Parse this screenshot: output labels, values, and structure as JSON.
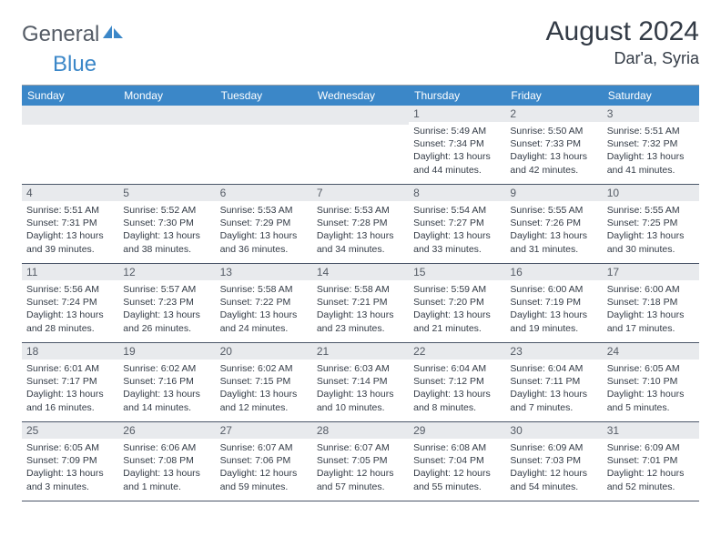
{
  "brand": {
    "part1": "General",
    "part2": "Blue"
  },
  "title": "August 2024",
  "location": "Dar'a, Syria",
  "colors": {
    "header_bg": "#3b87c8",
    "header_text": "#ffffff",
    "daynum_bg": "#e8eaed",
    "border": "#4a5568",
    "text": "#333b46",
    "logo_gray": "#555c66",
    "logo_blue": "#3b87c8"
  },
  "day_names": [
    "Sunday",
    "Monday",
    "Tuesday",
    "Wednesday",
    "Thursday",
    "Friday",
    "Saturday"
  ],
  "weeks": [
    [
      null,
      null,
      null,
      null,
      {
        "n": "1",
        "sr": "5:49 AM",
        "ss": "7:34 PM",
        "dl": "13 hours and 44 minutes."
      },
      {
        "n": "2",
        "sr": "5:50 AM",
        "ss": "7:33 PM",
        "dl": "13 hours and 42 minutes."
      },
      {
        "n": "3",
        "sr": "5:51 AM",
        "ss": "7:32 PM",
        "dl": "13 hours and 41 minutes."
      }
    ],
    [
      {
        "n": "4",
        "sr": "5:51 AM",
        "ss": "7:31 PM",
        "dl": "13 hours and 39 minutes."
      },
      {
        "n": "5",
        "sr": "5:52 AM",
        "ss": "7:30 PM",
        "dl": "13 hours and 38 minutes."
      },
      {
        "n": "6",
        "sr": "5:53 AM",
        "ss": "7:29 PM",
        "dl": "13 hours and 36 minutes."
      },
      {
        "n": "7",
        "sr": "5:53 AM",
        "ss": "7:28 PM",
        "dl": "13 hours and 34 minutes."
      },
      {
        "n": "8",
        "sr": "5:54 AM",
        "ss": "7:27 PM",
        "dl": "13 hours and 33 minutes."
      },
      {
        "n": "9",
        "sr": "5:55 AM",
        "ss": "7:26 PM",
        "dl": "13 hours and 31 minutes."
      },
      {
        "n": "10",
        "sr": "5:55 AM",
        "ss": "7:25 PM",
        "dl": "13 hours and 30 minutes."
      }
    ],
    [
      {
        "n": "11",
        "sr": "5:56 AM",
        "ss": "7:24 PM",
        "dl": "13 hours and 28 minutes."
      },
      {
        "n": "12",
        "sr": "5:57 AM",
        "ss": "7:23 PM",
        "dl": "13 hours and 26 minutes."
      },
      {
        "n": "13",
        "sr": "5:58 AM",
        "ss": "7:22 PM",
        "dl": "13 hours and 24 minutes."
      },
      {
        "n": "14",
        "sr": "5:58 AM",
        "ss": "7:21 PM",
        "dl": "13 hours and 23 minutes."
      },
      {
        "n": "15",
        "sr": "5:59 AM",
        "ss": "7:20 PM",
        "dl": "13 hours and 21 minutes."
      },
      {
        "n": "16",
        "sr": "6:00 AM",
        "ss": "7:19 PM",
        "dl": "13 hours and 19 minutes."
      },
      {
        "n": "17",
        "sr": "6:00 AM",
        "ss": "7:18 PM",
        "dl": "13 hours and 17 minutes."
      }
    ],
    [
      {
        "n": "18",
        "sr": "6:01 AM",
        "ss": "7:17 PM",
        "dl": "13 hours and 16 minutes."
      },
      {
        "n": "19",
        "sr": "6:02 AM",
        "ss": "7:16 PM",
        "dl": "13 hours and 14 minutes."
      },
      {
        "n": "20",
        "sr": "6:02 AM",
        "ss": "7:15 PM",
        "dl": "13 hours and 12 minutes."
      },
      {
        "n": "21",
        "sr": "6:03 AM",
        "ss": "7:14 PM",
        "dl": "13 hours and 10 minutes."
      },
      {
        "n": "22",
        "sr": "6:04 AM",
        "ss": "7:12 PM",
        "dl": "13 hours and 8 minutes."
      },
      {
        "n": "23",
        "sr": "6:04 AM",
        "ss": "7:11 PM",
        "dl": "13 hours and 7 minutes."
      },
      {
        "n": "24",
        "sr": "6:05 AM",
        "ss": "7:10 PM",
        "dl": "13 hours and 5 minutes."
      }
    ],
    [
      {
        "n": "25",
        "sr": "6:05 AM",
        "ss": "7:09 PM",
        "dl": "13 hours and 3 minutes."
      },
      {
        "n": "26",
        "sr": "6:06 AM",
        "ss": "7:08 PM",
        "dl": "13 hours and 1 minute."
      },
      {
        "n": "27",
        "sr": "6:07 AM",
        "ss": "7:06 PM",
        "dl": "12 hours and 59 minutes."
      },
      {
        "n": "28",
        "sr": "6:07 AM",
        "ss": "7:05 PM",
        "dl": "12 hours and 57 minutes."
      },
      {
        "n": "29",
        "sr": "6:08 AM",
        "ss": "7:04 PM",
        "dl": "12 hours and 55 minutes."
      },
      {
        "n": "30",
        "sr": "6:09 AM",
        "ss": "7:03 PM",
        "dl": "12 hours and 54 minutes."
      },
      {
        "n": "31",
        "sr": "6:09 AM",
        "ss": "7:01 PM",
        "dl": "12 hours and 52 minutes."
      }
    ]
  ],
  "labels": {
    "sunrise": "Sunrise:",
    "sunset": "Sunset:",
    "daylight": "Daylight:"
  }
}
